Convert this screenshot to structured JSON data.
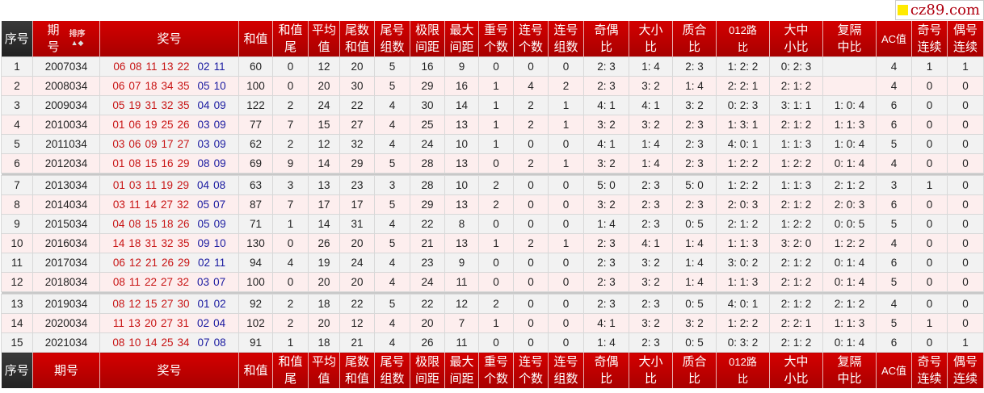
{
  "watermark": "cz89.com",
  "sort_label": "排序",
  "headers": [
    "序号",
    "期\n号",
    "奖号",
    "和值",
    "和值\n尾",
    "平均\n值",
    "尾数\n和值",
    "尾号\n组数",
    "极限\n间距",
    "最大\n间距",
    "重号\n个数",
    "连号\n个数",
    "连号\n组数",
    "奇偶\n比",
    "大小\n比",
    "质合\n比",
    "012路\n比",
    "大中\n小比",
    "复隔\n中比",
    "AC值",
    "奇号\n连续",
    "偶号\n连续"
  ],
  "footer_headers": [
    "序号",
    "期号",
    "奖号",
    "和值",
    "和值\n尾",
    "平均\n值",
    "尾数\n和值",
    "尾号\n组数",
    "极限\n间距",
    "最大\n间距",
    "重号\n个数",
    "连号\n个数",
    "连号\n组数",
    "奇偶\n比",
    "大小\n比",
    "质合\n比",
    "012路\n比",
    "大中\n小比",
    "复隔\n中比",
    "AC值",
    "奇号\n连续",
    "偶号\n连续"
  ],
  "colors": {
    "header_red": "#c00000",
    "front_numbers": "#c81414",
    "back_numbers": "#1a1aa0"
  },
  "rows": [
    {
      "no": "1",
      "issue": "2007034",
      "front": [
        "06",
        "08",
        "11",
        "13",
        "22"
      ],
      "back": [
        "02",
        "11"
      ],
      "vals": [
        "60",
        "0",
        "12",
        "20",
        "5",
        "16",
        "9",
        "0",
        "0",
        "0",
        "2: 3",
        "1: 4",
        "2: 3",
        "1: 2: 2",
        "0: 2: 3",
        "",
        "4",
        "1",
        "1"
      ]
    },
    {
      "no": "2",
      "issue": "2008034",
      "front": [
        "06",
        "07",
        "18",
        "34",
        "35"
      ],
      "back": [
        "05",
        "10"
      ],
      "vals": [
        "100",
        "0",
        "20",
        "30",
        "5",
        "29",
        "16",
        "1",
        "4",
        "2",
        "2: 3",
        "3: 2",
        "1: 4",
        "2: 2: 1",
        "2: 1: 2",
        "",
        "4",
        "0",
        "0"
      ]
    },
    {
      "no": "3",
      "issue": "2009034",
      "front": [
        "05",
        "19",
        "31",
        "32",
        "35"
      ],
      "back": [
        "04",
        "09"
      ],
      "vals": [
        "122",
        "2",
        "24",
        "22",
        "4",
        "30",
        "14",
        "1",
        "2",
        "1",
        "4: 1",
        "4: 1",
        "3: 2",
        "0: 2: 3",
        "3: 1: 1",
        "1: 0: 4",
        "6",
        "0",
        "0"
      ]
    },
    {
      "no": "4",
      "issue": "2010034",
      "front": [
        "01",
        "06",
        "19",
        "25",
        "26"
      ],
      "back": [
        "03",
        "09"
      ],
      "vals": [
        "77",
        "7",
        "15",
        "27",
        "4",
        "25",
        "13",
        "1",
        "2",
        "1",
        "3: 2",
        "3: 2",
        "2: 3",
        "1: 3: 1",
        "2: 1: 2",
        "1: 1: 3",
        "6",
        "0",
        "0"
      ]
    },
    {
      "no": "5",
      "issue": "2011034",
      "front": [
        "03",
        "06",
        "09",
        "17",
        "27"
      ],
      "back": [
        "03",
        "09"
      ],
      "vals": [
        "62",
        "2",
        "12",
        "32",
        "4",
        "24",
        "10",
        "1",
        "0",
        "0",
        "4: 1",
        "1: 4",
        "2: 3",
        "4: 0: 1",
        "1: 1: 3",
        "1: 0: 4",
        "5",
        "0",
        "0"
      ]
    },
    {
      "no": "6",
      "issue": "2012034",
      "front": [
        "01",
        "08",
        "15",
        "16",
        "29"
      ],
      "back": [
        "08",
        "09"
      ],
      "vals": [
        "69",
        "9",
        "14",
        "29",
        "5",
        "28",
        "13",
        "0",
        "2",
        "1",
        "3: 2",
        "1: 4",
        "2: 3",
        "1: 2: 2",
        "1: 2: 2",
        "0: 1: 4",
        "4",
        "0",
        "0"
      ]
    },
    {
      "no": "7",
      "issue": "2013034",
      "front": [
        "01",
        "03",
        "11",
        "19",
        "29"
      ],
      "back": [
        "04",
        "08"
      ],
      "vals": [
        "63",
        "3",
        "13",
        "23",
        "3",
        "28",
        "10",
        "2",
        "0",
        "0",
        "5: 0",
        "2: 3",
        "5: 0",
        "1: 2: 2",
        "1: 1: 3",
        "2: 1: 2",
        "3",
        "1",
        "0"
      ]
    },
    {
      "no": "8",
      "issue": "2014034",
      "front": [
        "03",
        "11",
        "14",
        "27",
        "32"
      ],
      "back": [
        "05",
        "07"
      ],
      "vals": [
        "87",
        "7",
        "17",
        "17",
        "5",
        "29",
        "13",
        "2",
        "0",
        "0",
        "3: 2",
        "2: 3",
        "2: 3",
        "2: 0: 3",
        "2: 1: 2",
        "2: 0: 3",
        "6",
        "0",
        "0"
      ]
    },
    {
      "no": "9",
      "issue": "2015034",
      "front": [
        "04",
        "08",
        "15",
        "18",
        "26"
      ],
      "back": [
        "05",
        "09"
      ],
      "vals": [
        "71",
        "1",
        "14",
        "31",
        "4",
        "22",
        "8",
        "0",
        "0",
        "0",
        "1: 4",
        "2: 3",
        "0: 5",
        "2: 1: 2",
        "1: 2: 2",
        "0: 0: 5",
        "5",
        "0",
        "0"
      ]
    },
    {
      "no": "10",
      "issue": "2016034",
      "front": [
        "14",
        "18",
        "31",
        "32",
        "35"
      ],
      "back": [
        "09",
        "10"
      ],
      "vals": [
        "130",
        "0",
        "26",
        "20",
        "5",
        "21",
        "13",
        "1",
        "2",
        "1",
        "2: 3",
        "4: 1",
        "1: 4",
        "1: 1: 3",
        "3: 2: 0",
        "1: 2: 2",
        "4",
        "0",
        "0"
      ]
    },
    {
      "no": "11",
      "issue": "2017034",
      "front": [
        "06",
        "12",
        "21",
        "26",
        "29"
      ],
      "back": [
        "02",
        "11"
      ],
      "vals": [
        "94",
        "4",
        "19",
        "24",
        "4",
        "23",
        "9",
        "0",
        "0",
        "0",
        "2: 3",
        "3: 2",
        "1: 4",
        "3: 0: 2",
        "2: 1: 2",
        "0: 1: 4",
        "6",
        "0",
        "0"
      ]
    },
    {
      "no": "12",
      "issue": "2018034",
      "front": [
        "08",
        "11",
        "22",
        "27",
        "32"
      ],
      "back": [
        "03",
        "07"
      ],
      "vals": [
        "100",
        "0",
        "20",
        "20",
        "4",
        "24",
        "11",
        "0",
        "0",
        "0",
        "2: 3",
        "3: 2",
        "1: 4",
        "1: 1: 3",
        "2: 1: 2",
        "0: 1: 4",
        "5",
        "0",
        "0"
      ]
    },
    {
      "no": "13",
      "issue": "2019034",
      "front": [
        "08",
        "12",
        "15",
        "27",
        "30"
      ],
      "back": [
        "01",
        "02"
      ],
      "vals": [
        "92",
        "2",
        "18",
        "22",
        "5",
        "22",
        "12",
        "2",
        "0",
        "0",
        "2: 3",
        "2: 3",
        "0: 5",
        "4: 0: 1",
        "2: 1: 2",
        "2: 1: 2",
        "4",
        "0",
        "0"
      ]
    },
    {
      "no": "14",
      "issue": "2020034",
      "front": [
        "11",
        "13",
        "20",
        "27",
        "31"
      ],
      "back": [
        "02",
        "04"
      ],
      "vals": [
        "102",
        "2",
        "20",
        "12",
        "4",
        "20",
        "7",
        "1",
        "0",
        "0",
        "4: 1",
        "3: 2",
        "3: 2",
        "1: 2: 2",
        "2: 2: 1",
        "1: 1: 3",
        "5",
        "1",
        "0"
      ]
    },
    {
      "no": "15",
      "issue": "2021034",
      "front": [
        "08",
        "10",
        "14",
        "25",
        "34"
      ],
      "back": [
        "07",
        "08"
      ],
      "vals": [
        "91",
        "1",
        "18",
        "21",
        "4",
        "26",
        "11",
        "0",
        "0",
        "0",
        "1: 4",
        "2: 3",
        "0: 5",
        "0: 3: 2",
        "2: 1: 2",
        "0: 1: 4",
        "6",
        "0",
        "1"
      ]
    }
  ]
}
